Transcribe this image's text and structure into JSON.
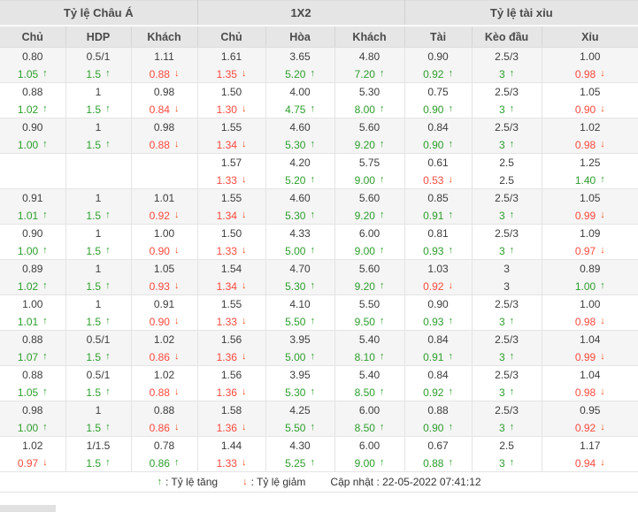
{
  "colors": {
    "up_green": "#2e9e2e",
    "down_red_text": "#fb4a3e",
    "down_red_arrow": "#f4511e",
    "header_bg": "#e5e5e5",
    "row_alt_bg": "#f5f5f5"
  },
  "icons": {
    "up_arrow": "↑",
    "down_arrow": "↓"
  },
  "header": {
    "groups": [
      {
        "label": "Tỷ lệ Châu Á"
      },
      {
        "label": "1X2"
      },
      {
        "label": "Tỷ lệ tài xỉu"
      }
    ],
    "columns": [
      "Chủ",
      "HDP",
      "Khách",
      "Chủ",
      "Hòa",
      "Khách",
      "Tài",
      "Kèo đầu",
      "Xỉu"
    ]
  },
  "rows": [
    {
      "cells": [
        {
          "v": "0.80",
          "c": "1.05",
          "t": "up"
        },
        {
          "v": "0.5/1",
          "c": "1.5",
          "t": "up"
        },
        {
          "v": "1.11",
          "c": "0.88",
          "t": "down"
        },
        {
          "v": "1.61",
          "c": "1.35",
          "t": "down"
        },
        {
          "v": "3.65",
          "c": "5.20",
          "t": "up"
        },
        {
          "v": "4.80",
          "c": "7.20",
          "t": "up"
        },
        {
          "v": "0.90",
          "c": "0.92",
          "t": "up"
        },
        {
          "v": "2.5/3",
          "c": "3",
          "t": "up"
        },
        {
          "v": "1.00",
          "c": "0.98",
          "t": "down"
        }
      ]
    },
    {
      "cells": [
        {
          "v": "0.88",
          "c": "1.02",
          "t": "up"
        },
        {
          "v": "1",
          "c": "1.5",
          "t": "up"
        },
        {
          "v": "0.98",
          "c": "0.84",
          "t": "down"
        },
        {
          "v": "1.50",
          "c": "1.30",
          "t": "down"
        },
        {
          "v": "4.00",
          "c": "4.75",
          "t": "up"
        },
        {
          "v": "5.30",
          "c": "8.00",
          "t": "up"
        },
        {
          "v": "0.75",
          "c": "0.90",
          "t": "up"
        },
        {
          "v": "2.5/3",
          "c": "3",
          "t": "up"
        },
        {
          "v": "1.05",
          "c": "0.90",
          "t": "down"
        }
      ]
    },
    {
      "cells": [
        {
          "v": "0.90",
          "c": "1.00",
          "t": "up"
        },
        {
          "v": "1",
          "c": "1.5",
          "t": "up"
        },
        {
          "v": "0.98",
          "c": "0.88",
          "t": "down"
        },
        {
          "v": "1.55",
          "c": "1.34",
          "t": "down"
        },
        {
          "v": "4.60",
          "c": "5.30",
          "t": "up"
        },
        {
          "v": "5.60",
          "c": "9.20",
          "t": "up"
        },
        {
          "v": "0.84",
          "c": "0.90",
          "t": "up"
        },
        {
          "v": "2.5/3",
          "c": "3",
          "t": "up"
        },
        {
          "v": "1.02",
          "c": "0.98",
          "t": "down"
        }
      ]
    },
    {
      "cells": [
        {
          "v": "",
          "c": "",
          "t": "none"
        },
        {
          "v": "",
          "c": "",
          "t": "none"
        },
        {
          "v": "",
          "c": "",
          "t": "none"
        },
        {
          "v": "1.57",
          "c": "1.33",
          "t": "down"
        },
        {
          "v": "4.20",
          "c": "5.20",
          "t": "up"
        },
        {
          "v": "5.75",
          "c": "9.00",
          "t": "up"
        },
        {
          "v": "0.61",
          "c": "0.53",
          "t": "down"
        },
        {
          "v": "2.5",
          "c": "2.5",
          "t": "none"
        },
        {
          "v": "1.25",
          "c": "1.40",
          "t": "up"
        }
      ]
    },
    {
      "cells": [
        {
          "v": "0.91",
          "c": "1.01",
          "t": "up"
        },
        {
          "v": "1",
          "c": "1.5",
          "t": "up"
        },
        {
          "v": "1.01",
          "c": "0.92",
          "t": "down"
        },
        {
          "v": "1.55",
          "c": "1.34",
          "t": "down"
        },
        {
          "v": "4.60",
          "c": "5.30",
          "t": "up"
        },
        {
          "v": "5.60",
          "c": "9.20",
          "t": "up"
        },
        {
          "v": "0.85",
          "c": "0.91",
          "t": "up"
        },
        {
          "v": "2.5/3",
          "c": "3",
          "t": "up"
        },
        {
          "v": "1.05",
          "c": "0.99",
          "t": "down"
        }
      ]
    },
    {
      "cells": [
        {
          "v": "0.90",
          "c": "1.00",
          "t": "up"
        },
        {
          "v": "1",
          "c": "1.5",
          "t": "up"
        },
        {
          "v": "1.00",
          "c": "0.90",
          "t": "down"
        },
        {
          "v": "1.50",
          "c": "1.33",
          "t": "down"
        },
        {
          "v": "4.33",
          "c": "5.00",
          "t": "up"
        },
        {
          "v": "6.00",
          "c": "9.00",
          "t": "up"
        },
        {
          "v": "0.81",
          "c": "0.93",
          "t": "up"
        },
        {
          "v": "2.5/3",
          "c": "3",
          "t": "up"
        },
        {
          "v": "1.09",
          "c": "0.97",
          "t": "down"
        }
      ]
    },
    {
      "cells": [
        {
          "v": "0.89",
          "c": "1.02",
          "t": "up"
        },
        {
          "v": "1",
          "c": "1.5",
          "t": "up"
        },
        {
          "v": "1.05",
          "c": "0.93",
          "t": "down"
        },
        {
          "v": "1.54",
          "c": "1.34",
          "t": "down"
        },
        {
          "v": "4.70",
          "c": "5.30",
          "t": "up"
        },
        {
          "v": "5.60",
          "c": "9.20",
          "t": "up"
        },
        {
          "v": "1.03",
          "c": "0.92",
          "t": "down"
        },
        {
          "v": "3",
          "c": "3",
          "t": "none"
        },
        {
          "v": "0.89",
          "c": "1.00",
          "t": "up"
        }
      ]
    },
    {
      "cells": [
        {
          "v": "1.00",
          "c": "1.01",
          "t": "up"
        },
        {
          "v": "1",
          "c": "1.5",
          "t": "up"
        },
        {
          "v": "0.91",
          "c": "0.90",
          "t": "down"
        },
        {
          "v": "1.55",
          "c": "1.33",
          "t": "down"
        },
        {
          "v": "4.10",
          "c": "5.50",
          "t": "up"
        },
        {
          "v": "5.50",
          "c": "9.50",
          "t": "up"
        },
        {
          "v": "0.90",
          "c": "0.93",
          "t": "up"
        },
        {
          "v": "2.5/3",
          "c": "3",
          "t": "up"
        },
        {
          "v": "1.00",
          "c": "0.98",
          "t": "down"
        }
      ]
    },
    {
      "cells": [
        {
          "v": "0.88",
          "c": "1.07",
          "t": "up"
        },
        {
          "v": "0.5/1",
          "c": "1.5",
          "t": "up"
        },
        {
          "v": "1.02",
          "c": "0.86",
          "t": "down"
        },
        {
          "v": "1.56",
          "c": "1.36",
          "t": "down"
        },
        {
          "v": "3.95",
          "c": "5.00",
          "t": "up"
        },
        {
          "v": "5.40",
          "c": "8.10",
          "t": "up"
        },
        {
          "v": "0.84",
          "c": "0.91",
          "t": "up"
        },
        {
          "v": "2.5/3",
          "c": "3",
          "t": "up"
        },
        {
          "v": "1.04",
          "c": "0.99",
          "t": "down"
        }
      ]
    },
    {
      "cells": [
        {
          "v": "0.88",
          "c": "1.05",
          "t": "up"
        },
        {
          "v": "0.5/1",
          "c": "1.5",
          "t": "up"
        },
        {
          "v": "1.02",
          "c": "0.88",
          "t": "down"
        },
        {
          "v": "1.56",
          "c": "1.36",
          "t": "down"
        },
        {
          "v": "3.95",
          "c": "5.30",
          "t": "up"
        },
        {
          "v": "5.40",
          "c": "8.50",
          "t": "up"
        },
        {
          "v": "0.84",
          "c": "0.92",
          "t": "up"
        },
        {
          "v": "2.5/3",
          "c": "3",
          "t": "up"
        },
        {
          "v": "1.04",
          "c": "0.98",
          "t": "down"
        }
      ]
    },
    {
      "cells": [
        {
          "v": "0.98",
          "c": "1.00",
          "t": "up"
        },
        {
          "v": "1",
          "c": "1.5",
          "t": "up"
        },
        {
          "v": "0.88",
          "c": "0.86",
          "t": "down"
        },
        {
          "v": "1.58",
          "c": "1.36",
          "t": "down"
        },
        {
          "v": "4.25",
          "c": "5.50",
          "t": "up"
        },
        {
          "v": "6.00",
          "c": "8.50",
          "t": "up"
        },
        {
          "v": "0.88",
          "c": "0.90",
          "t": "up"
        },
        {
          "v": "2.5/3",
          "c": "3",
          "t": "up"
        },
        {
          "v": "0.95",
          "c": "0.92",
          "t": "down"
        }
      ]
    },
    {
      "cells": [
        {
          "v": "1.02",
          "c": "0.97",
          "t": "down"
        },
        {
          "v": "1/1.5",
          "c": "1.5",
          "t": "up"
        },
        {
          "v": "0.78",
          "c": "0.86",
          "t": "up"
        },
        {
          "v": "1.44",
          "c": "1.33",
          "t": "down"
        },
        {
          "v": "4.30",
          "c": "5.25",
          "t": "up"
        },
        {
          "v": "6.00",
          "c": "9.00",
          "t": "up"
        },
        {
          "v": "0.67",
          "c": "0.88",
          "t": "up"
        },
        {
          "v": "2.5",
          "c": "3",
          "t": "up"
        },
        {
          "v": "1.17",
          "c": "0.94",
          "t": "down"
        }
      ]
    }
  ],
  "footer": {
    "legend_up_label": ": Tỷ lệ tăng",
    "legend_down_label": ": Tỷ lệ giảm",
    "update_text": "Cập nhật : 22-05-2022 07:41:12"
  }
}
